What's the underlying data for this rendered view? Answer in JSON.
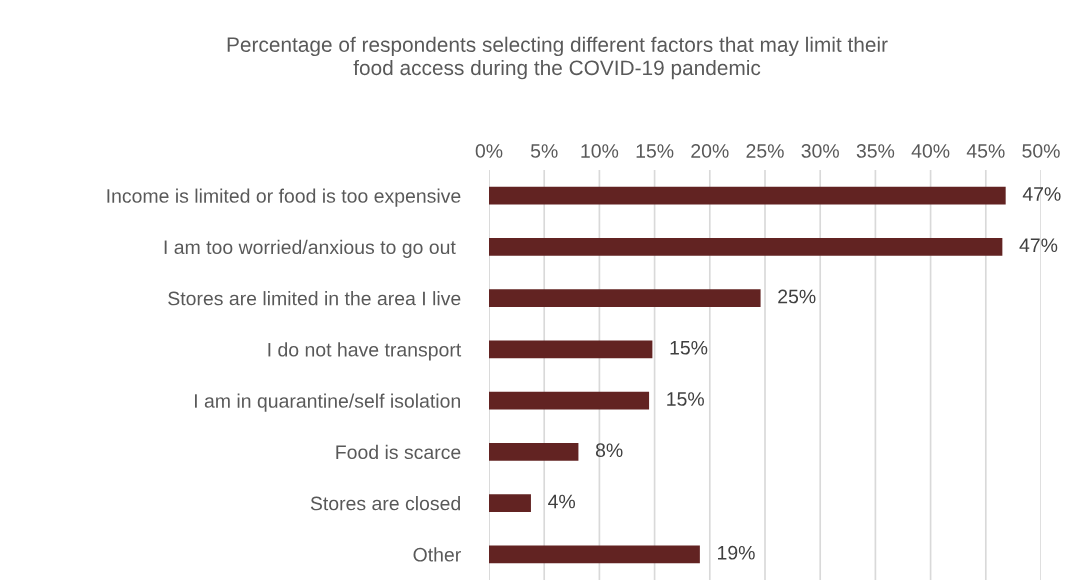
{
  "chart_data": {
    "type": "bar",
    "orientation": "horizontal",
    "title": "Percentage of respondents selecting different factors that may limit their\nfood access during the COVID-19 pandemic",
    "categories": [
      "Income is limited or food is too expensive",
      "I am too worried/anxious to go out ",
      "Stores are limited in the area I live",
      "I do not have transport",
      "I am in quarantine/self isolation",
      "Food is scarce",
      "Stores are closed",
      "Other"
    ],
    "values": [
      46.8,
      46.5,
      24.6,
      14.8,
      14.5,
      8.1,
      3.8,
      19.1
    ],
    "value_labels": [
      "47%",
      "47%",
      "25%",
      "15%",
      "15%",
      "8%",
      "4%",
      "19%"
    ],
    "color": "#622322",
    "xlim": [
      0,
      50
    ],
    "xticks": [
      {
        "value": 0,
        "label": "0%"
      },
      {
        "value": 5,
        "label": "5%"
      },
      {
        "value": 10,
        "label": "10%"
      },
      {
        "value": 15,
        "label": "15%"
      },
      {
        "value": 20,
        "label": "20%"
      },
      {
        "value": 25,
        "label": "25%"
      },
      {
        "value": 30,
        "label": "30%"
      },
      {
        "value": 35,
        "label": "35%"
      },
      {
        "value": 40,
        "label": "40%"
      },
      {
        "value": 45,
        "label": "45%"
      },
      {
        "value": 50,
        "label": "50%"
      }
    ],
    "grid": "x"
  }
}
